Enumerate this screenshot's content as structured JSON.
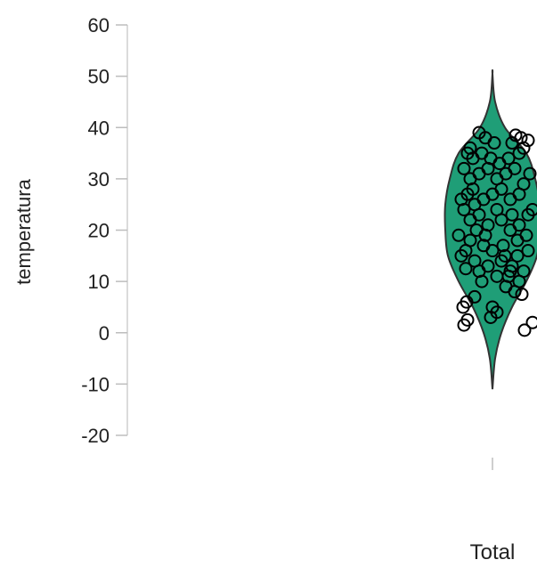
{
  "chart_data": {
    "type": "violin",
    "ylabel": "temperatura",
    "categories": [
      "Total"
    ],
    "ylim": [
      -20,
      60
    ],
    "yticks": [
      -20,
      -10,
      0,
      10,
      20,
      30,
      40,
      50,
      60
    ],
    "fill_color": "#1f9e77",
    "outline_color": "#333333",
    "density_profile": [
      {
        "y": -11,
        "half_width": 0.0
      },
      {
        "y": -5,
        "half_width": 0.03
      },
      {
        "y": 0,
        "half_width": 0.1
      },
      {
        "y": 5,
        "half_width": 0.22
      },
      {
        "y": 10,
        "half_width": 0.38
      },
      {
        "y": 15,
        "half_width": 0.5
      },
      {
        "y": 20,
        "half_width": 0.53
      },
      {
        "y": 25,
        "half_width": 0.53
      },
      {
        "y": 30,
        "half_width": 0.48
      },
      {
        "y": 35,
        "half_width": 0.38
      },
      {
        "y": 40,
        "half_width": 0.14
      },
      {
        "y": 45,
        "half_width": 0.03
      },
      {
        "y": 50.5,
        "half_width": 0.0
      }
    ],
    "points": [
      {
        "jitter": -0.32,
        "y": 1.5
      },
      {
        "jitter": -0.28,
        "y": 2.5
      },
      {
        "jitter": -0.33,
        "y": 5
      },
      {
        "jitter": -0.29,
        "y": 6
      },
      {
        "jitter": -0.2,
        "y": 7
      },
      {
        "jitter": -0.02,
        "y": 3
      },
      {
        "jitter": 0.05,
        "y": 4
      },
      {
        "jitter": 0.0,
        "y": 5
      },
      {
        "jitter": 0.45,
        "y": 2
      },
      {
        "jitter": 0.36,
        "y": 0.5
      },
      {
        "jitter": -0.35,
        "y": 15
      },
      {
        "jitter": -0.3,
        "y": 16
      },
      {
        "jitter": -0.38,
        "y": 19
      },
      {
        "jitter": -0.25,
        "y": 18
      },
      {
        "jitter": -0.2,
        "y": 14
      },
      {
        "jitter": -0.15,
        "y": 12
      },
      {
        "jitter": -0.1,
        "y": 17
      },
      {
        "jitter": -0.05,
        "y": 13
      },
      {
        "jitter": 0.0,
        "y": 16
      },
      {
        "jitter": 0.05,
        "y": 11
      },
      {
        "jitter": 0.1,
        "y": 14
      },
      {
        "jitter": 0.15,
        "y": 9
      },
      {
        "jitter": 0.2,
        "y": 12
      },
      {
        "jitter": 0.25,
        "y": 8
      },
      {
        "jitter": 0.3,
        "y": 10
      },
      {
        "jitter": 0.35,
        "y": 12
      },
      {
        "jitter": 0.28,
        "y": 15
      },
      {
        "jitter": 0.18,
        "y": 11
      },
      {
        "jitter": 0.22,
        "y": 13
      },
      {
        "jitter": -0.12,
        "y": 10
      },
      {
        "jitter": 0.4,
        "y": 16
      },
      {
        "jitter": 0.38,
        "y": 19
      },
      {
        "jitter": 0.3,
        "y": 21
      },
      {
        "jitter": 0.4,
        "y": 23
      },
      {
        "jitter": 0.45,
        "y": 24
      },
      {
        "jitter": 0.2,
        "y": 20
      },
      {
        "jitter": 0.1,
        "y": 22
      },
      {
        "jitter": -0.05,
        "y": 21
      },
      {
        "jitter": -0.15,
        "y": 23
      },
      {
        "jitter": -0.25,
        "y": 22
      },
      {
        "jitter": -0.32,
        "y": 24
      },
      {
        "jitter": -0.35,
        "y": 26
      },
      {
        "jitter": -0.28,
        "y": 27
      },
      {
        "jitter": -0.2,
        "y": 25
      },
      {
        "jitter": -0.1,
        "y": 26
      },
      {
        "jitter": 0.0,
        "y": 27
      },
      {
        "jitter": 0.1,
        "y": 28
      },
      {
        "jitter": 0.2,
        "y": 26
      },
      {
        "jitter": 0.3,
        "y": 27
      },
      {
        "jitter": 0.35,
        "y": 29
      },
      {
        "jitter": 0.42,
        "y": 31
      },
      {
        "jitter": 0.25,
        "y": 32
      },
      {
        "jitter": 0.15,
        "y": 31
      },
      {
        "jitter": 0.05,
        "y": 30
      },
      {
        "jitter": -0.05,
        "y": 32
      },
      {
        "jitter": -0.15,
        "y": 31
      },
      {
        "jitter": -0.25,
        "y": 30
      },
      {
        "jitter": -0.32,
        "y": 32
      },
      {
        "jitter": -0.22,
        "y": 34
      },
      {
        "jitter": -0.12,
        "y": 35
      },
      {
        "jitter": -0.02,
        "y": 34
      },
      {
        "jitter": 0.08,
        "y": 33
      },
      {
        "jitter": 0.18,
        "y": 34
      },
      {
        "jitter": 0.3,
        "y": 35
      },
      {
        "jitter": 0.22,
        "y": 37
      },
      {
        "jitter": 0.32,
        "y": 38
      },
      {
        "jitter": 0.4,
        "y": 37.5
      },
      {
        "jitter": 0.35,
        "y": 36
      },
      {
        "jitter": 0.26,
        "y": 38.5
      },
      {
        "jitter": -0.08,
        "y": 38
      },
      {
        "jitter": -0.15,
        "y": 39
      },
      {
        "jitter": -0.25,
        "y": 36
      },
      {
        "jitter": -0.28,
        "y": 35
      },
      {
        "jitter": 0.02,
        "y": 37
      },
      {
        "jitter": -0.18,
        "y": 20
      },
      {
        "jitter": -0.08,
        "y": 19
      },
      {
        "jitter": 0.12,
        "y": 17
      },
      {
        "jitter": 0.28,
        "y": 18
      },
      {
        "jitter": -0.22,
        "y": 28
      },
      {
        "jitter": 0.05,
        "y": 24
      },
      {
        "jitter": 0.22,
        "y": 23
      },
      {
        "jitter": -0.3,
        "y": 12.5
      },
      {
        "jitter": 0.33,
        "y": 7.5
      },
      {
        "jitter": 0.14,
        "y": 15
      }
    ]
  }
}
